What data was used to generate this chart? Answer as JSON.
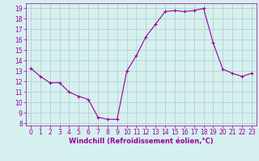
{
  "x": [
    0,
    1,
    2,
    3,
    4,
    5,
    6,
    7,
    8,
    9,
    10,
    11,
    12,
    13,
    14,
    15,
    16,
    17,
    18,
    19,
    20,
    21,
    22,
    23
  ],
  "y": [
    13.3,
    12.5,
    11.9,
    11.9,
    11.0,
    10.6,
    10.3,
    8.6,
    8.4,
    8.4,
    13.0,
    14.5,
    16.3,
    17.5,
    18.7,
    18.8,
    18.7,
    18.8,
    19.0,
    15.7,
    13.2,
    12.8,
    12.5,
    12.8
  ],
  "line_color": "#990099",
  "marker": "+",
  "marker_size": 3,
  "bg_color": "#d6f0f0",
  "grid_color": "#b0c8c8",
  "xlabel": "Windchill (Refroidissement éolien,°C)",
  "xlabel_color": "#990099",
  "tick_color": "#990099",
  "label_color": "#990099",
  "ylim": [
    7.8,
    19.5
  ],
  "xlim": [
    -0.5,
    23.5
  ],
  "yticks": [
    8,
    9,
    10,
    11,
    12,
    13,
    14,
    15,
    16,
    17,
    18,
    19
  ],
  "xticks": [
    0,
    1,
    2,
    3,
    4,
    5,
    6,
    7,
    8,
    9,
    10,
    11,
    12,
    13,
    14,
    15,
    16,
    17,
    18,
    19,
    20,
    21,
    22,
    23
  ],
  "tick_fontsize": 5.5,
  "xlabel_fontsize": 6.0
}
